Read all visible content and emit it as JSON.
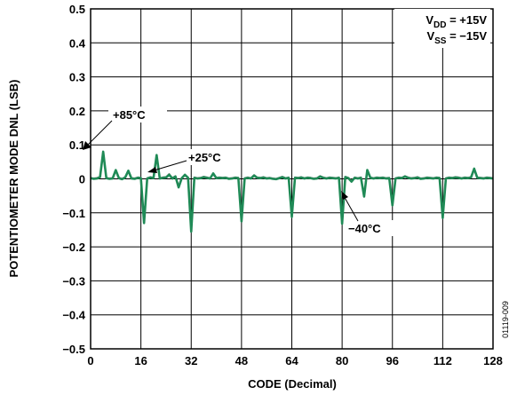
{
  "chart_data": {
    "type": "line",
    "xlabel": "CODE (Decimal)",
    "ylabel": "POTENTIOMETER MODE DNL (LSB)",
    "xlim": [
      0,
      128
    ],
    "ylim": [
      -0.5,
      0.5
    ],
    "x_ticks": [
      "0",
      "16",
      "32",
      "48",
      "64",
      "80",
      "96",
      "112",
      "128"
    ],
    "y_ticks": [
      "0.5",
      "0.4",
      "0.3",
      "0.2",
      "0.1",
      "0",
      "−0.1",
      "−0.2",
      "−0.3",
      "−0.4",
      "−0.5"
    ],
    "grid": true,
    "series_colors": [
      "#d9547a",
      "#8a8a8a",
      "#1f8a56"
    ],
    "series": [
      {
        "values": [
          0.003,
          0.0,
          0.002,
          0.006,
          0.07,
          0.003,
          0.001,
          0.002,
          0.022,
          0.003,
          0.0,
          0.005,
          0.02,
          0.002,
          0.001,
          0.004,
          0.003,
          -0.12,
          0.002,
          0.005,
          0.003,
          0.062,
          0.002,
          0.004,
          0.005,
          0.013,
          0.002,
          0.008,
          -0.02,
          0.003,
          0.01,
          0.004,
          -0.14,
          0.004,
          0.002,
          0.003,
          0.006,
          0.004,
          0.002,
          0.014,
          0.003,
          0.004,
          0.003,
          0.004,
          0.001,
          0.002,
          0.004,
          0.003,
          -0.115,
          0.002,
          0.004,
          0.002,
          0.011,
          0.004,
          0.003,
          0.005,
          0.002,
          0.003,
          0.001,
          0.0,
          0.003,
          0.006,
          0.002,
          0.004,
          -0.105,
          0.004,
          0.003,
          0.005,
          0.002,
          0.004,
          0.003,
          0.001,
          0.002,
          0.008,
          0.004,
          0.002,
          0.004,
          0.003,
          0.002,
          0.004,
          -0.125,
          0.006,
          0.003,
          -0.005,
          0.004,
          0.002,
          0.004,
          -0.045,
          0.018,
          0.004,
          0.002,
          0.004,
          0.003,
          0.004,
          0.002,
          0.003,
          -0.07,
          0.002,
          0.004,
          0.003,
          0.008,
          0.004,
          0.002,
          0.003,
          0.005,
          0.001,
          0.002,
          0.004,
          0.003,
          0.002,
          0.004,
          0.003,
          -0.105,
          0.002,
          0.004,
          0.003,
          0.005,
          0.004,
          0.002,
          0.004,
          0.003,
          0.005,
          0.024,
          0.004,
          0.003,
          0.002,
          0.004,
          0.003,
          0.002
        ]
      },
      {
        "values": [
          0.004,
          0.002,
          0.003,
          0.007,
          0.076,
          0.004,
          0.002,
          0.003,
          0.024,
          0.004,
          0.001,
          0.006,
          0.022,
          0.003,
          0.002,
          0.005,
          0.004,
          -0.125,
          0.003,
          0.006,
          0.004,
          0.066,
          0.003,
          0.005,
          0.006,
          0.015,
          0.003,
          0.009,
          -0.022,
          0.004,
          0.011,
          0.005,
          -0.148,
          0.005,
          0.003,
          0.004,
          0.007,
          0.005,
          0.003,
          0.015,
          0.004,
          0.005,
          0.004,
          0.005,
          0.002,
          0.003,
          0.005,
          0.004,
          -0.12,
          0.003,
          0.005,
          0.003,
          0.012,
          0.005,
          0.004,
          0.006,
          0.003,
          0.004,
          0.002,
          0.001,
          0.004,
          0.007,
          0.003,
          0.005,
          -0.108,
          0.005,
          0.004,
          0.006,
          0.003,
          0.005,
          0.004,
          0.002,
          0.003,
          0.009,
          0.005,
          0.003,
          0.005,
          0.004,
          0.003,
          0.005,
          -0.128,
          0.007,
          0.004,
          -0.006,
          0.005,
          0.003,
          0.005,
          -0.048,
          0.022,
          0.005,
          0.003,
          0.005,
          0.004,
          0.005,
          0.003,
          0.004,
          -0.074,
          0.003,
          0.005,
          0.004,
          0.009,
          0.005,
          0.003,
          0.004,
          0.006,
          0.002,
          0.003,
          0.005,
          0.004,
          0.003,
          0.005,
          0.004,
          -0.11,
          0.003,
          0.005,
          0.004,
          0.006,
          0.005,
          0.003,
          0.005,
          0.004,
          0.006,
          0.026,
          0.005,
          0.004,
          0.003,
          0.005,
          0.004,
          0.003
        ]
      },
      {
        "values": [
          0.002,
          0.0,
          0.001,
          0.005,
          0.08,
          0.002,
          0.0,
          0.001,
          0.026,
          0.002,
          -0.001,
          0.004,
          0.024,
          0.001,
          0.0,
          0.003,
          0.002,
          -0.13,
          0.001,
          0.004,
          0.002,
          0.07,
          0.001,
          0.003,
          0.004,
          0.012,
          0.001,
          0.007,
          -0.025,
          0.002,
          0.012,
          0.003,
          -0.155,
          0.003,
          0.001,
          0.002,
          0.005,
          0.003,
          0.001,
          0.016,
          0.002,
          0.003,
          0.002,
          0.003,
          0.0,
          0.001,
          0.003,
          0.002,
          -0.125,
          0.001,
          0.003,
          0.001,
          0.01,
          0.003,
          0.002,
          0.004,
          0.001,
          0.002,
          0.0,
          -0.001,
          0.002,
          0.005,
          0.001,
          0.003,
          -0.112,
          0.003,
          0.002,
          0.004,
          0.001,
          0.003,
          0.002,
          0.0,
          0.001,
          0.007,
          0.003,
          0.001,
          0.003,
          0.002,
          0.001,
          0.003,
          -0.132,
          0.005,
          0.002,
          -0.008,
          0.003,
          0.001,
          0.003,
          -0.052,
          0.026,
          0.003,
          0.001,
          0.003,
          0.002,
          0.003,
          0.001,
          0.002,
          -0.078,
          0.001,
          0.003,
          0.002,
          0.007,
          0.003,
          0.001,
          0.002,
          0.004,
          0.0,
          0.001,
          0.003,
          0.002,
          0.001,
          0.003,
          0.002,
          -0.115,
          0.001,
          0.003,
          0.002,
          0.004,
          0.003,
          0.001,
          0.003,
          0.002,
          0.004,
          0.03,
          0.003,
          0.002,
          0.001,
          0.003,
          0.002,
          0.001
        ]
      }
    ],
    "annotations": [
      "+85°C",
      "+25°C",
      "−40°C"
    ],
    "legend_box": {
      "vdd": {
        "prefix": "V",
        "sub": "DD",
        "value": " = +15V"
      },
      "vss": {
        "prefix": "V",
        "sub": "SS",
        "value": " = −15V"
      }
    }
  },
  "figure_id": "01119-009"
}
